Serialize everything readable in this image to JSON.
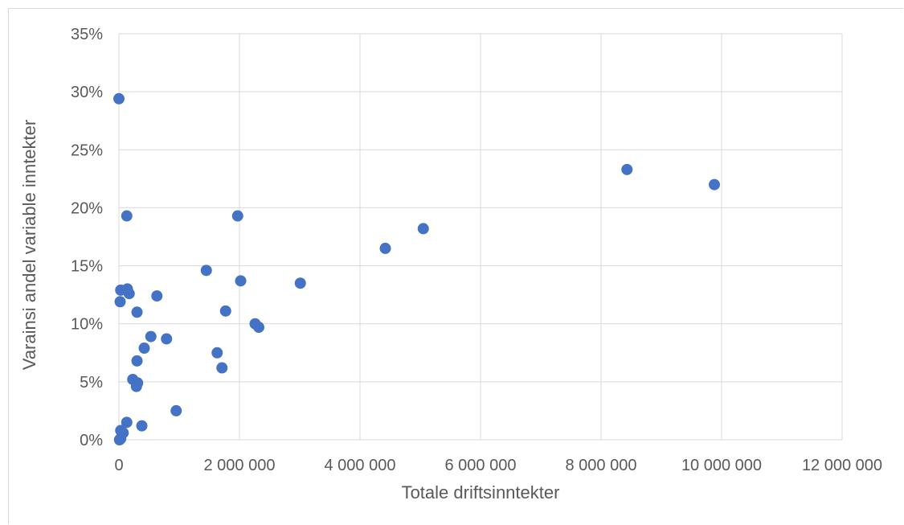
{
  "chart_data": {
    "type": "scatter",
    "title": "",
    "xlabel": "Totale driftsinntekter",
    "ylabel": "Varainsi andel variable inntekter",
    "xlim": [
      0,
      12000000
    ],
    "ylim": [
      0,
      0.35
    ],
    "x_ticks": [
      0,
      2000000,
      4000000,
      6000000,
      8000000,
      10000000,
      12000000
    ],
    "x_tick_labels": [
      "0",
      "2 000 000",
      "4 000 000",
      "6 000 000",
      "8 000 000",
      "10 000 000",
      "12 000 000"
    ],
    "y_ticks": [
      0,
      0.05,
      0.1,
      0.15,
      0.2,
      0.25,
      0.3,
      0.35
    ],
    "y_tick_labels": [
      "0%",
      "5%",
      "10%",
      "15%",
      "20%",
      "25%",
      "30%",
      "35%"
    ],
    "grid": true,
    "legend": "none",
    "marker_color": "#4472c4",
    "points": [
      {
        "x": 0,
        "y": 0.294
      },
      {
        "x": 130000,
        "y": 0.193
      },
      {
        "x": 30000,
        "y": 0.129
      },
      {
        "x": 140000,
        "y": 0.13
      },
      {
        "x": 170000,
        "y": 0.126
      },
      {
        "x": 20000,
        "y": 0.119
      },
      {
        "x": 630000,
        "y": 0.124
      },
      {
        "x": 300000,
        "y": 0.11
      },
      {
        "x": 1450000,
        "y": 0.146
      },
      {
        "x": 1970000,
        "y": 0.193
      },
      {
        "x": 2020000,
        "y": 0.137
      },
      {
        "x": 1770000,
        "y": 0.111
      },
      {
        "x": 2260000,
        "y": 0.1
      },
      {
        "x": 2320000,
        "y": 0.097
      },
      {
        "x": 3010000,
        "y": 0.135
      },
      {
        "x": 4420000,
        "y": 0.165
      },
      {
        "x": 5050000,
        "y": 0.182
      },
      {
        "x": 8430000,
        "y": 0.233
      },
      {
        "x": 9880000,
        "y": 0.22
      },
      {
        "x": 530000,
        "y": 0.089
      },
      {
        "x": 790000,
        "y": 0.087
      },
      {
        "x": 420000,
        "y": 0.079
      },
      {
        "x": 300000,
        "y": 0.068
      },
      {
        "x": 1630000,
        "y": 0.075
      },
      {
        "x": 1710000,
        "y": 0.062
      },
      {
        "x": 230000,
        "y": 0.052
      },
      {
        "x": 310000,
        "y": 0.049
      },
      {
        "x": 290000,
        "y": 0.046
      },
      {
        "x": 950000,
        "y": 0.025
      },
      {
        "x": 130000,
        "y": 0.015
      },
      {
        "x": 380000,
        "y": 0.012
      },
      {
        "x": 30000,
        "y": 0.008
      },
      {
        "x": 70000,
        "y": 0.006
      },
      {
        "x": 10000,
        "y": 0.0
      },
      {
        "x": 30000,
        "y": 0.001
      }
    ]
  }
}
